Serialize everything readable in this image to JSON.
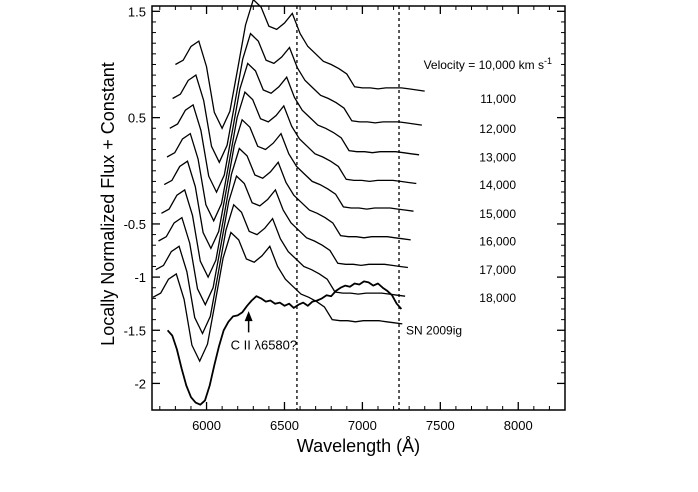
{
  "chart_data": {
    "type": "line",
    "title": "",
    "xlabel": "Wavelength (Å)",
    "ylabel": "Locally Normalized Flux + Constant",
    "xlim": [
      5650,
      8300
    ],
    "ylim": [
      -2.25,
      1.55
    ],
    "x_ticks": [
      6000,
      6500,
      7000,
      7500,
      8000
    ],
    "x_tick_labels": [
      "6000",
      "6500",
      "7000",
      "7500",
      "8000"
    ],
    "y_ticks": [
      1.5,
      0.5,
      -0.5,
      -1,
      -1.5,
      -2
    ],
    "y_tick_labels": [
      "1.5",
      "0.5",
      "-0.5",
      "-1",
      "-1.5",
      "-2"
    ],
    "reference_lines_x": [
      6580,
      7235
    ],
    "annotations": {
      "arrow_label": "C II λ6580?",
      "arrow_x": 6270,
      "arrow_tip_y": -1.32,
      "arrow_base_y": -1.52,
      "observed_label": "SN 2009ig"
    },
    "model_x": [
      5800,
      5850,
      5900,
      5950,
      6000,
      6050,
      6100,
      6150,
      6200,
      6250,
      6300,
      6350,
      6400,
      6450,
      6500,
      6550,
      6600,
      6650,
      6700,
      6750,
      6800,
      6850,
      6900,
      6950,
      7000,
      7050,
      7100,
      7150,
      7200,
      7250,
      7300,
      7350,
      7400
    ],
    "base_profile": [
      0.0,
      0.04,
      0.17,
      0.22,
      -0.02,
      -0.45,
      -0.6,
      -0.44,
      -0.04,
      0.37,
      0.61,
      0.54,
      0.36,
      0.33,
      0.39,
      0.48,
      0.29,
      0.17,
      0.1,
      0.03,
      0.0,
      -0.04,
      -0.09,
      -0.21,
      -0.22,
      -0.22,
      -0.23,
      -0.22,
      -0.22,
      -0.22,
      -0.23,
      -0.24,
      -0.25
    ],
    "series": [
      {
        "name": "Velocity = 10,000 km s-1",
        "label_main": "Velocity = 10,000 km s",
        "label_sup": "-1",
        "velocity": 10000,
        "offset": 1.0,
        "shift": 0
      },
      {
        "name": "11,000",
        "label_main": "11,000",
        "label_sup": "",
        "velocity": 11000,
        "offset": 0.68,
        "shift": -18
      },
      {
        "name": "12,000",
        "label_main": "12,000",
        "label_sup": "",
        "velocity": 12000,
        "offset": 0.4,
        "shift": -36
      },
      {
        "name": "13,000",
        "label_main": "13,000",
        "label_sup": "",
        "velocity": 13000,
        "offset": 0.13,
        "shift": -54
      },
      {
        "name": "14,000",
        "label_main": "14,000",
        "label_sup": "",
        "velocity": 14000,
        "offset": -0.13,
        "shift": -72
      },
      {
        "name": "15,000",
        "label_main": "15,000",
        "label_sup": "",
        "velocity": 15000,
        "offset": -0.4,
        "shift": -90
      },
      {
        "name": "16,000",
        "label_main": "16,000",
        "label_sup": "",
        "velocity": 16000,
        "offset": -0.66,
        "shift": -108
      },
      {
        "name": "17,000",
        "label_main": "17,000",
        "label_sup": "",
        "velocity": 17000,
        "offset": -0.93,
        "shift": -126
      },
      {
        "name": "18,000",
        "label_main": "18,000",
        "label_sup": "",
        "velocity": 18000,
        "offset": -1.19,
        "shift": -144
      }
    ],
    "observed": {
      "name": "SN 2009ig",
      "x": [
        5750,
        5780,
        5810,
        5840,
        5870,
        5900,
        5930,
        5960,
        5990,
        6020,
        6050,
        6080,
        6110,
        6140,
        6170,
        6200,
        6230,
        6260,
        6290,
        6320,
        6350,
        6380,
        6410,
        6440,
        6470,
        6500,
        6530,
        6560,
        6590,
        6620,
        6650,
        6680,
        6710,
        6740,
        6770,
        6800,
        6830,
        6860,
        6890,
        6920,
        6950,
        6980,
        7010,
        7040,
        7070,
        7100,
        7130,
        7160,
        7190,
        7220,
        7250
      ],
      "y": [
        -1.5,
        -1.55,
        -1.68,
        -1.86,
        -2.02,
        -2.13,
        -2.18,
        -2.2,
        -2.16,
        -2.02,
        -1.83,
        -1.65,
        -1.5,
        -1.42,
        -1.37,
        -1.36,
        -1.33,
        -1.27,
        -1.22,
        -1.18,
        -1.2,
        -1.23,
        -1.22,
        -1.25,
        -1.24,
        -1.27,
        -1.25,
        -1.29,
        -1.26,
        -1.24,
        -1.27,
        -1.23,
        -1.22,
        -1.2,
        -1.17,
        -1.18,
        -1.13,
        -1.1,
        -1.08,
        -1.09,
        -1.06,
        -1.07,
        -1.04,
        -1.05,
        -1.08,
        -1.06,
        -1.1,
        -1.13,
        -1.17,
        -1.25,
        -1.3
      ]
    }
  }
}
